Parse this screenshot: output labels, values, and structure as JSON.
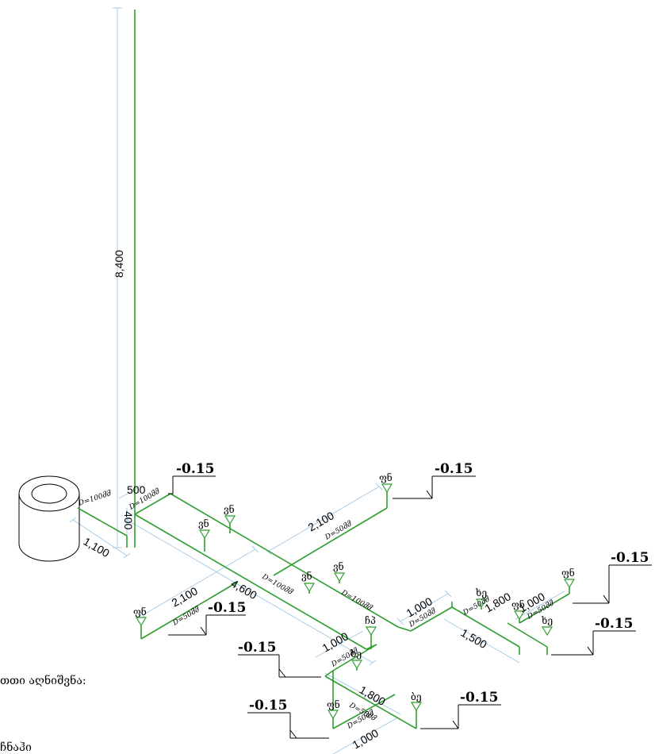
{
  "dimensions": {
    "riser_height": "8,400",
    "top_500": "500",
    "short_400": "400",
    "left_1100": "1,100",
    "main_4600": "4,600",
    "branch_upper_2100": "2,100",
    "branch_lower_2100": "2,100",
    "mid_1000": "1,000",
    "right_1000a": "1,000",
    "right_1800": "1,800",
    "right_1000b": "1,000",
    "right_1500": "1,500",
    "bottom_1800": "1,800",
    "bottom_1000": "1,000"
  },
  "diameters": {
    "tank_outlet": "D=100მმ",
    "riser_top": "D=100მმ",
    "main_mid": "D=100მმ",
    "main_right": "D=100მმ",
    "branch_upper": "D=50მმ",
    "branch_lower": "D=50მმ",
    "center_down": "D=50მმ",
    "right_a": "D=50მმ",
    "right_b": "D=50მმ",
    "right_c": "D=50მმ",
    "bottom_a": "D=50მმ",
    "bottom_b": "D=50მმ"
  },
  "fixture_tags": {
    "t1": "ვნ",
    "t2": "ვნ",
    "t3": "ფნ",
    "t4": "ვნ",
    "t5": "ვნ",
    "t6": "ფნ",
    "t7": "ჩპ",
    "t8": "ხე",
    "t9": "ბე",
    "t10": "ფნ",
    "t11": "ხე",
    "t12": "ფნ",
    "t13": "ხე",
    "t14": "ფნ"
  },
  "levels": {
    "l1": "-0.15",
    "l2": "-0.15",
    "l3": "-0.15",
    "l4": "-0.15",
    "l5": "-0.15",
    "l6": "-0.15",
    "l7": "-0.15",
    "l8": "-0.15"
  },
  "notes": {
    "legend_heading": "თთი აღნიშვნა:",
    "legend_item": "ჩნაჰი"
  }
}
